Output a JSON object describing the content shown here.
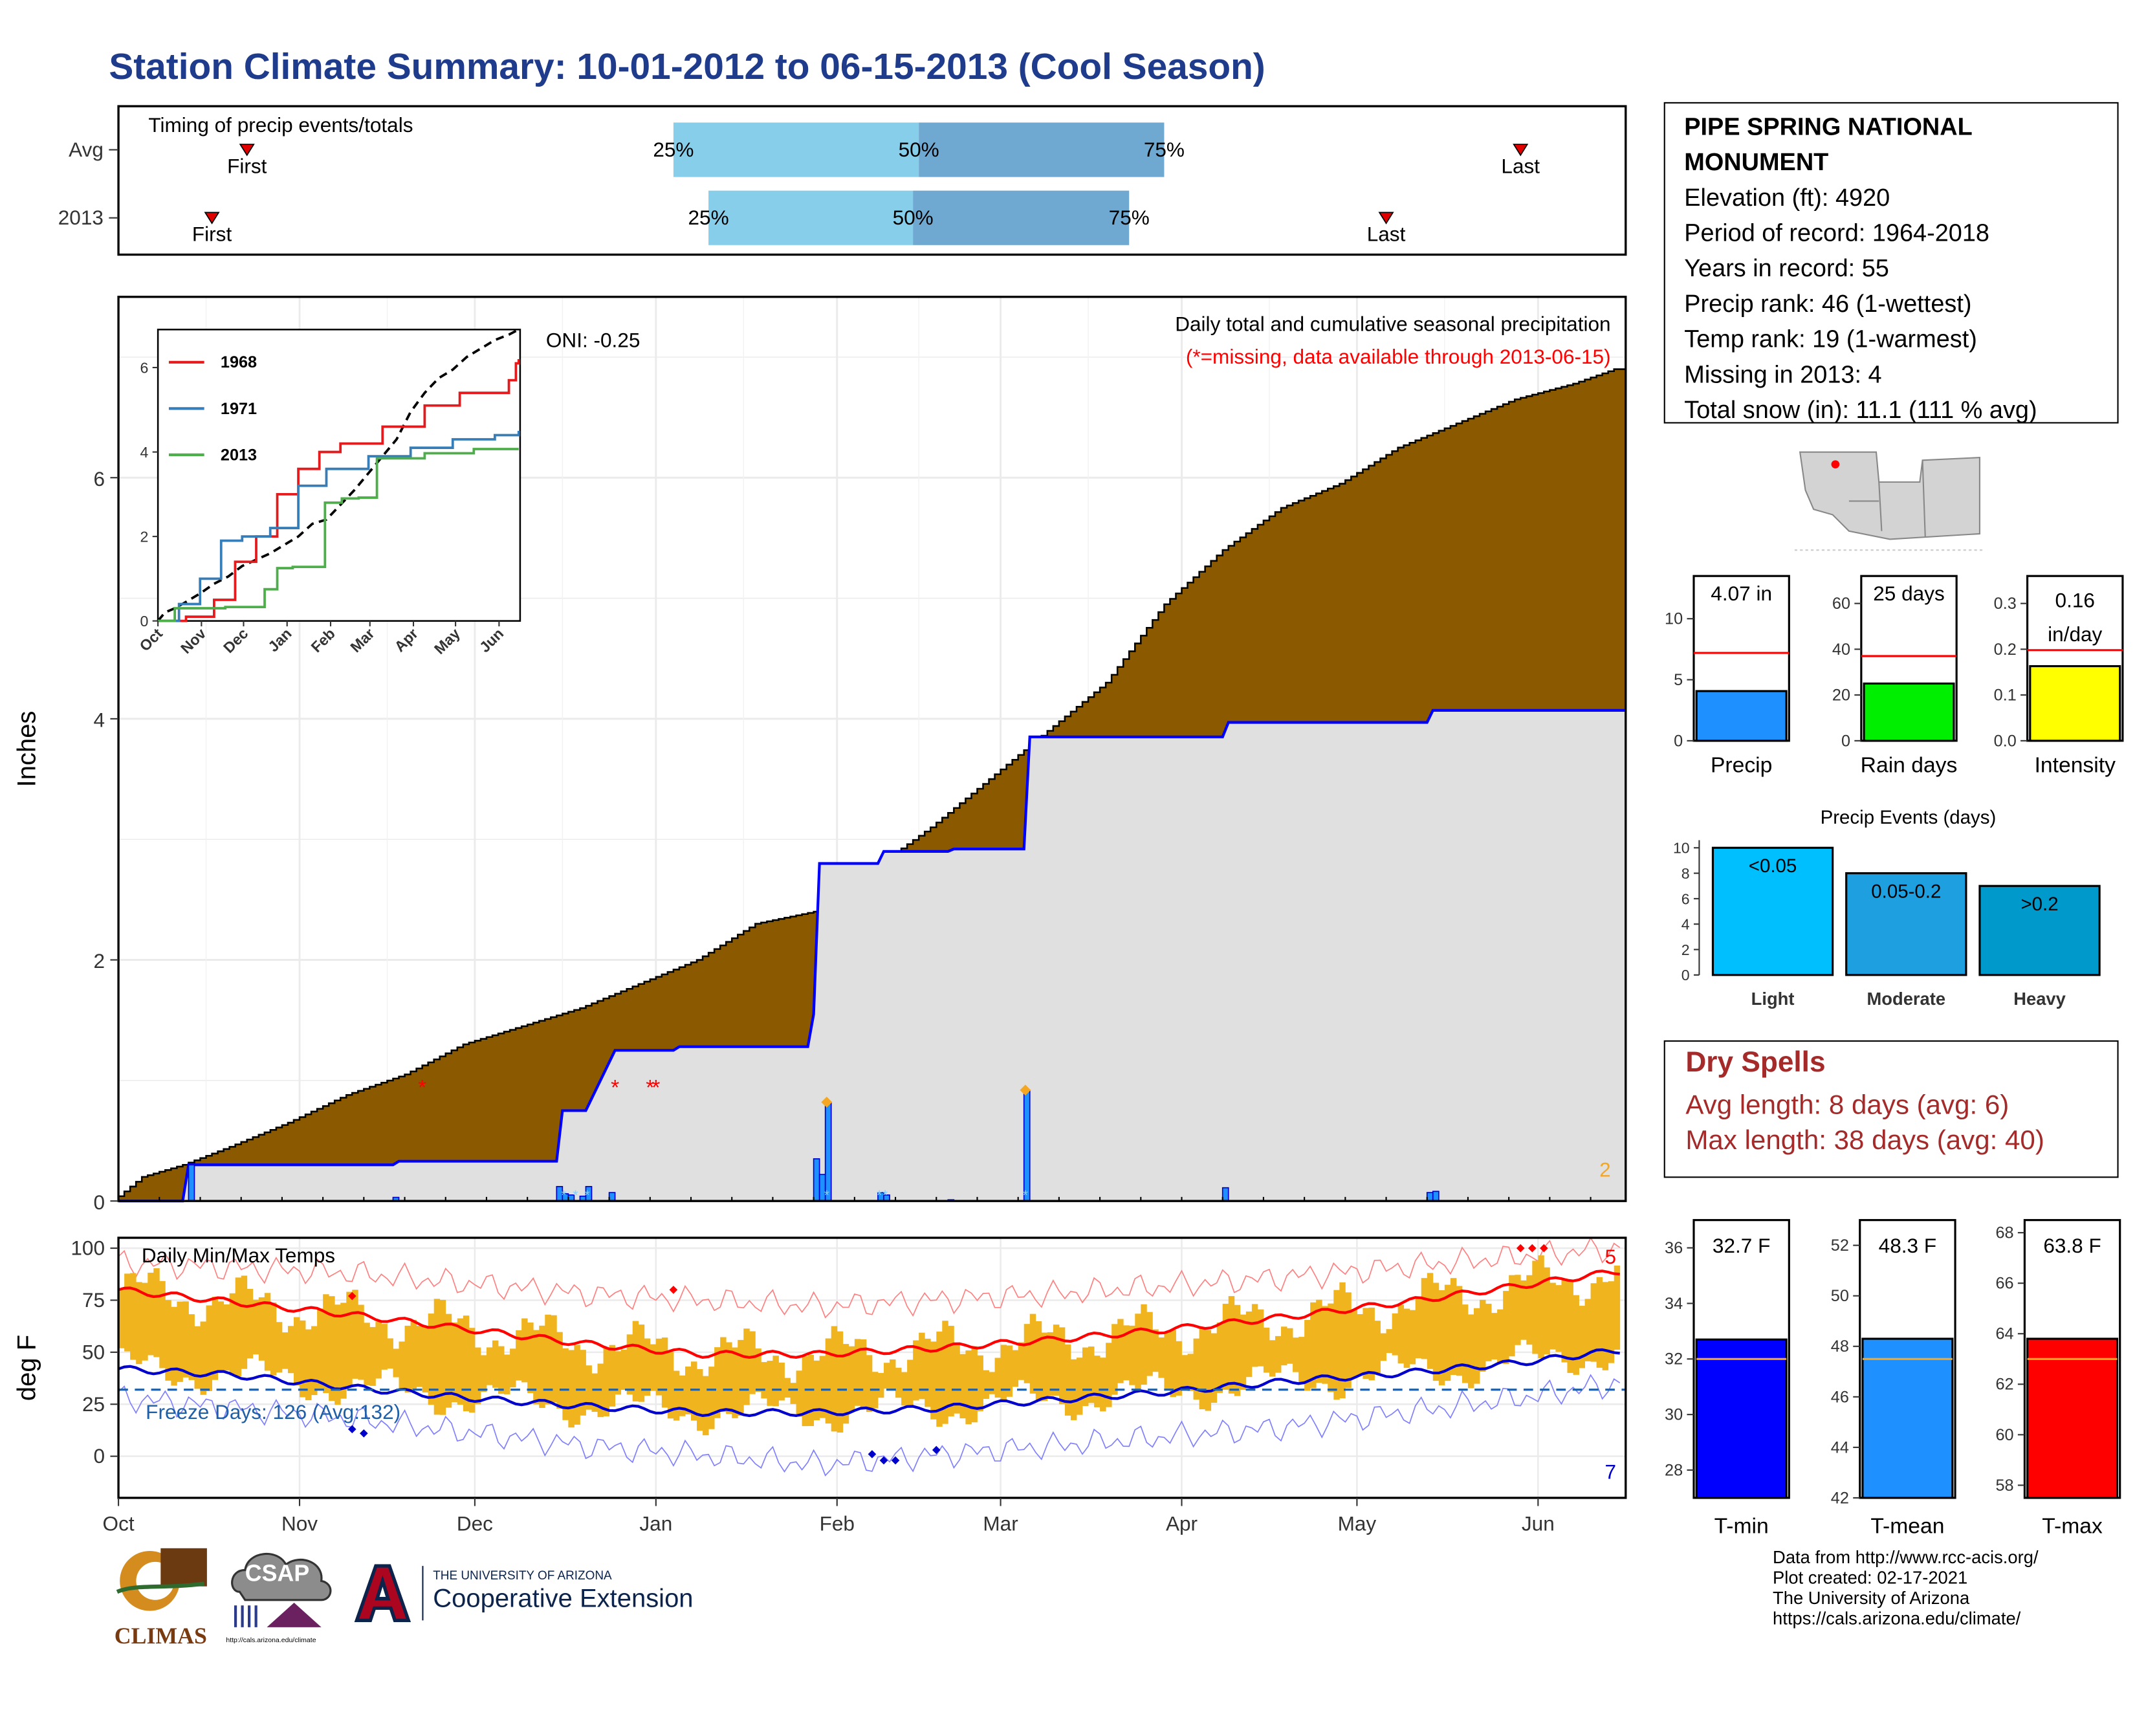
{
  "title": "Station Climate Summary: 10-01-2012 to 06-15-2013 (Cool Season)",
  "colors": {
    "title": "#1f3b8c",
    "precip_fill": "#8b5a00",
    "gray_fill": "#e0e0e0",
    "year_line": "#0000ff",
    "temp_bar": "#f0b41e",
    "tmax_line": "#ff0000",
    "tmin_line": "#0000cc",
    "freeze_line": "#1f5fa8",
    "dry_spells": "#a52a2a",
    "light_blue": "#87ceeb",
    "steel_blue": "#6fa8d0"
  },
  "timing": {
    "label": "Timing of precip events/totals",
    "rows": [
      {
        "label": "Avg",
        "first_label": "First",
        "last_label": "Last",
        "first_day": 22,
        "last_day": 240,
        "p25_label": "25%",
        "p50_label": "50%",
        "p75_label": "75%",
        "p25": 95,
        "p50": 137,
        "p75": 179
      },
      {
        "label": "2013",
        "first_label": "First",
        "last_label": "Last",
        "first_day": 16,
        "last_day": 217,
        "p25_label": "25%",
        "p50_label": "50%",
        "p75_label": "75%",
        "p25": 101,
        "p50": 136,
        "p75": 173
      }
    ]
  },
  "station": {
    "name": "PIPE SPRING NATIONAL MONUMENT",
    "lines": [
      "Elevation (ft): 4920",
      "Period of record: 1964-2018",
      "Years in record: 55",
      "Precip rank: 46 (1-wettest)",
      "Temp rank: 19 (1-warmest)",
      "Missing in 2013: 4",
      "Total snow (in): 11.1 (111 % avg)"
    ]
  },
  "precip_panel": {
    "title": "Daily total and cumulative seasonal precipitation",
    "note": "(*=missing, data available through 2013-06-15)",
    "oni": "ONI: -0.25",
    "ylabel": "Inches",
    "yticks": [
      "0",
      "2",
      "4",
      "6"
    ],
    "corner_count": "2"
  },
  "inset": {
    "legend": [
      "1968",
      "1971",
      "2013"
    ],
    "yticks": [
      "0",
      "2",
      "4",
      "6"
    ],
    "months": [
      "Oct",
      "Nov",
      "Dec",
      "Jan",
      "Feb",
      "Mar",
      "Apr",
      "May",
      "Jun"
    ]
  },
  "temp_panel": {
    "title": "Daily Min/Max Temps",
    "freeze": "Freeze Days: 126 (Avg:132)",
    "ylabel": "deg F",
    "yticks": [
      "0",
      "25",
      "50",
      "75",
      "100"
    ],
    "count_high": "5",
    "count_low": "7"
  },
  "months": [
    "Oct",
    "Nov",
    "Dec",
    "Jan",
    "Feb",
    "Mar",
    "Apr",
    "May",
    "Jun"
  ],
  "mini_bars": [
    {
      "label": "Precip",
      "value_text": "4.07 in",
      "value": 4.07,
      "avg": 7.2,
      "ymax": 13.5,
      "ticks": [
        "0",
        "5",
        "10"
      ],
      "tickvals": [
        0,
        5,
        10
      ],
      "color": "#1e90ff"
    },
    {
      "label": "Rain days",
      "value_text": "25 days",
      "value": 25,
      "avg": 37,
      "ymax": 72,
      "ticks": [
        "0",
        "20",
        "40",
        "60"
      ],
      "tickvals": [
        0,
        20,
        40,
        60
      ],
      "color": "#00ee00"
    },
    {
      "label": "Intensity",
      "value_text_lines": [
        "0.16",
        "in/day"
      ],
      "value": 0.163,
      "avg": 0.198,
      "ymax": 0.36,
      "ticks": [
        "0.0",
        "0.1",
        "0.2",
        "0.3"
      ],
      "tickvals": [
        0,
        0.1,
        0.2,
        0.3
      ],
      "color": "#ffff00"
    }
  ],
  "precip_events": {
    "title": "Precip Events (days)",
    "categories": [
      "Light",
      "Moderate",
      "Heavy"
    ],
    "bar_labels": [
      "<0.05",
      "0.05-0.2",
      ">0.2"
    ],
    "values": [
      10,
      8,
      7
    ],
    "yticks": [
      "0",
      "2",
      "4",
      "6",
      "8",
      "10"
    ],
    "colors": [
      "#00bfff",
      "#1e9fe0",
      "#0099cc"
    ]
  },
  "dry_spells": {
    "title": "Dry Spells",
    "avg": "Avg length: 8 days (avg: 6)",
    "max": "Max length: 38 days (avg: 40)"
  },
  "temp_bars": [
    {
      "label": "T-min",
      "value_text": "32.7 F",
      "value": 32.7,
      "avg": 32.0,
      "ymin": 27,
      "ymax": 37,
      "ticks": [
        "28",
        "30",
        "32",
        "34",
        "36"
      ],
      "tickvals": [
        28,
        30,
        32,
        34,
        36
      ],
      "color": "#0000ff"
    },
    {
      "label": "T-mean",
      "value_text": "48.3 F",
      "value": 48.3,
      "avg": 47.5,
      "ymin": 42,
      "ymax": 53,
      "ticks": [
        "42",
        "44",
        "46",
        "48",
        "50",
        "52"
      ],
      "tickvals": [
        42,
        44,
        46,
        48,
        50,
        52
      ],
      "color": "#1e90ff"
    },
    {
      "label": "T-max",
      "value_text": "63.8 F",
      "value": 63.8,
      "avg": 63.0,
      "ymin": 57.5,
      "ymax": 68.5,
      "ticks": [
        "58",
        "60",
        "62",
        "64",
        "66",
        "68"
      ],
      "tickvals": [
        58,
        60,
        62,
        64,
        66,
        68
      ],
      "color": "#ff0000"
    }
  ],
  "logos": {
    "climas": "CLIMAS",
    "csap": "CSAP",
    "csap_url": "http://cals.arizona.edu/climate",
    "ua_small": "THE UNIVERSITY OF ARIZONA",
    "ua_big": "Cooperative Extension"
  },
  "credits": [
    "Data from http://www.rcc-acis.org/",
    "Plot created: 02-17-2021",
    "The University of Arizona",
    "https://cals.arizona.edu/climate/"
  ],
  "chart_data": [
    {
      "type": "area",
      "title": "Daily total and cumulative seasonal precipitation",
      "ylabel": "Inches",
      "ylim": [
        0,
        7.5
      ],
      "x_unit": "day of season (0 = Oct 1)",
      "series": [
        {
          "name": "Avg cumulative",
          "x": [
            0,
            5,
            12,
            20,
            30,
            40,
            50,
            60,
            70,
            80,
            90,
            100,
            110,
            120,
            130,
            140,
            150,
            160,
            170,
            180,
            190,
            200,
            210,
            220,
            230,
            240,
            250,
            257
          ],
          "y": [
            0,
            0.2,
            0.3,
            0.45,
            0.65,
            0.88,
            1.05,
            1.3,
            1.45,
            1.6,
            1.8,
            2.0,
            2.3,
            2.4,
            2.75,
            3.1,
            3.5,
            3.9,
            4.3,
            4.95,
            5.4,
            5.75,
            5.95,
            6.25,
            6.45,
            6.65,
            6.78,
            6.9
          ]
        },
        {
          "name": "2013 cumulative",
          "x": [
            0,
            11,
            12,
            47,
            48,
            75,
            76,
            80,
            84,
            85,
            95,
            96,
            118,
            119,
            120,
            130,
            131,
            142,
            143,
            155,
            156,
            189,
            190,
            224,
            225,
            257
          ],
          "y": [
            0,
            0,
            0.3,
            0.3,
            0.33,
            0.33,
            0.75,
            0.75,
            1.15,
            1.25,
            1.25,
            1.28,
            1.28,
            1.55,
            2.8,
            2.8,
            2.9,
            2.9,
            2.92,
            2.92,
            3.85,
            3.85,
            3.97,
            3.97,
            4.07,
            4.07
          ]
        }
      ],
      "daily_bars": {
        "x": [
          12,
          47,
          75,
          76,
          77,
          79,
          80,
          84,
          119,
          120,
          121,
          130,
          131,
          142,
          155,
          189,
          224,
          225
        ],
        "y": [
          0.3,
          0.03,
          0.12,
          0.06,
          0.05,
          0.04,
          0.12,
          0.07,
          0.35,
          0.22,
          0.82,
          0.07,
          0.05,
          0.01,
          0.92,
          0.11,
          0.07,
          0.08
        ]
      },
      "missing_x": [
        52,
        85,
        91,
        92
      ]
    },
    {
      "type": "line",
      "title": "",
      "xlabel": "",
      "ylabel": "",
      "ylim": [
        0,
        7.2
      ],
      "series": [
        {
          "name": "1968",
          "x": [
            0,
            20,
            40,
            55,
            70,
            85,
            100,
            115,
            130,
            160,
            190,
            215,
            250,
            255,
            257
          ],
          "y": [
            0,
            0.1,
            0.5,
            1.4,
            2.0,
            3.0,
            3.6,
            4.0,
            4.2,
            4.6,
            5.1,
            5.4,
            5.7,
            6.1,
            6.2
          ]
        },
        {
          "name": "1971",
          "x": [
            0,
            15,
            30,
            45,
            60,
            80,
            100,
            120,
            150,
            180,
            210,
            240,
            257
          ],
          "y": [
            0,
            0.4,
            1.0,
            1.9,
            2.0,
            2.2,
            3.2,
            3.6,
            3.9,
            4.1,
            4.3,
            4.4,
            4.5
          ]
        },
        {
          "name": "2013",
          "x": [
            0,
            12,
            48,
            76,
            85,
            96,
            119,
            131,
            143,
            156,
            190,
            225,
            257
          ],
          "y": [
            0,
            0.3,
            0.33,
            0.75,
            1.25,
            1.28,
            2.8,
            2.9,
            2.92,
            3.85,
            3.97,
            4.07,
            4.07
          ]
        }
      ]
    },
    {
      "type": "bar",
      "title": "Daily Min/Max Temps",
      "ylabel": "deg F",
      "ylim": [
        -20,
        105
      ],
      "series": [
        {
          "name": "avg Tmax",
          "x": [
            0,
            20,
            40,
            60,
            80,
            100,
            120,
            140,
            160,
            180,
            200,
            220,
            240,
            257
          ],
          "y": [
            80,
            74,
            68,
            61,
            54,
            49,
            49,
            52,
            56,
            61,
            67,
            74,
            82,
            89
          ]
        },
        {
          "name": "avg Tmin",
          "x": [
            0,
            20,
            40,
            60,
            80,
            100,
            120,
            140,
            160,
            180,
            200,
            220,
            240,
            257
          ],
          "y": [
            42,
            39,
            33,
            28,
            24,
            21,
            21,
            23,
            27,
            31,
            36,
            40,
            45,
            51
          ]
        },
        {
          "name": "record high",
          "x": [
            0,
            40,
            80,
            120,
            160,
            200,
            240,
            257
          ],
          "y": [
            93,
            88,
            78,
            72,
            78,
            86,
            96,
            100
          ]
        },
        {
          "name": "record low",
          "x": [
            0,
            40,
            80,
            120,
            160,
            200,
            240,
            257
          ],
          "y": [
            28,
            18,
            5,
            -4,
            5,
            14,
            28,
            35
          ]
        }
      ]
    },
    {
      "type": "bar",
      "title": "Precip Events (days)",
      "categories": [
        "Light",
        "Moderate",
        "Heavy"
      ],
      "values": [
        10,
        8,
        7
      ]
    },
    {
      "type": "bar",
      "categories": [
        "Precip",
        "Rain days",
        "Intensity"
      ],
      "values": [
        4.07,
        25,
        0.16
      ]
    },
    {
      "type": "bar",
      "categories": [
        "T-min",
        "T-mean",
        "T-max"
      ],
      "values": [
        32.7,
        48.3,
        63.8
      ]
    }
  ]
}
